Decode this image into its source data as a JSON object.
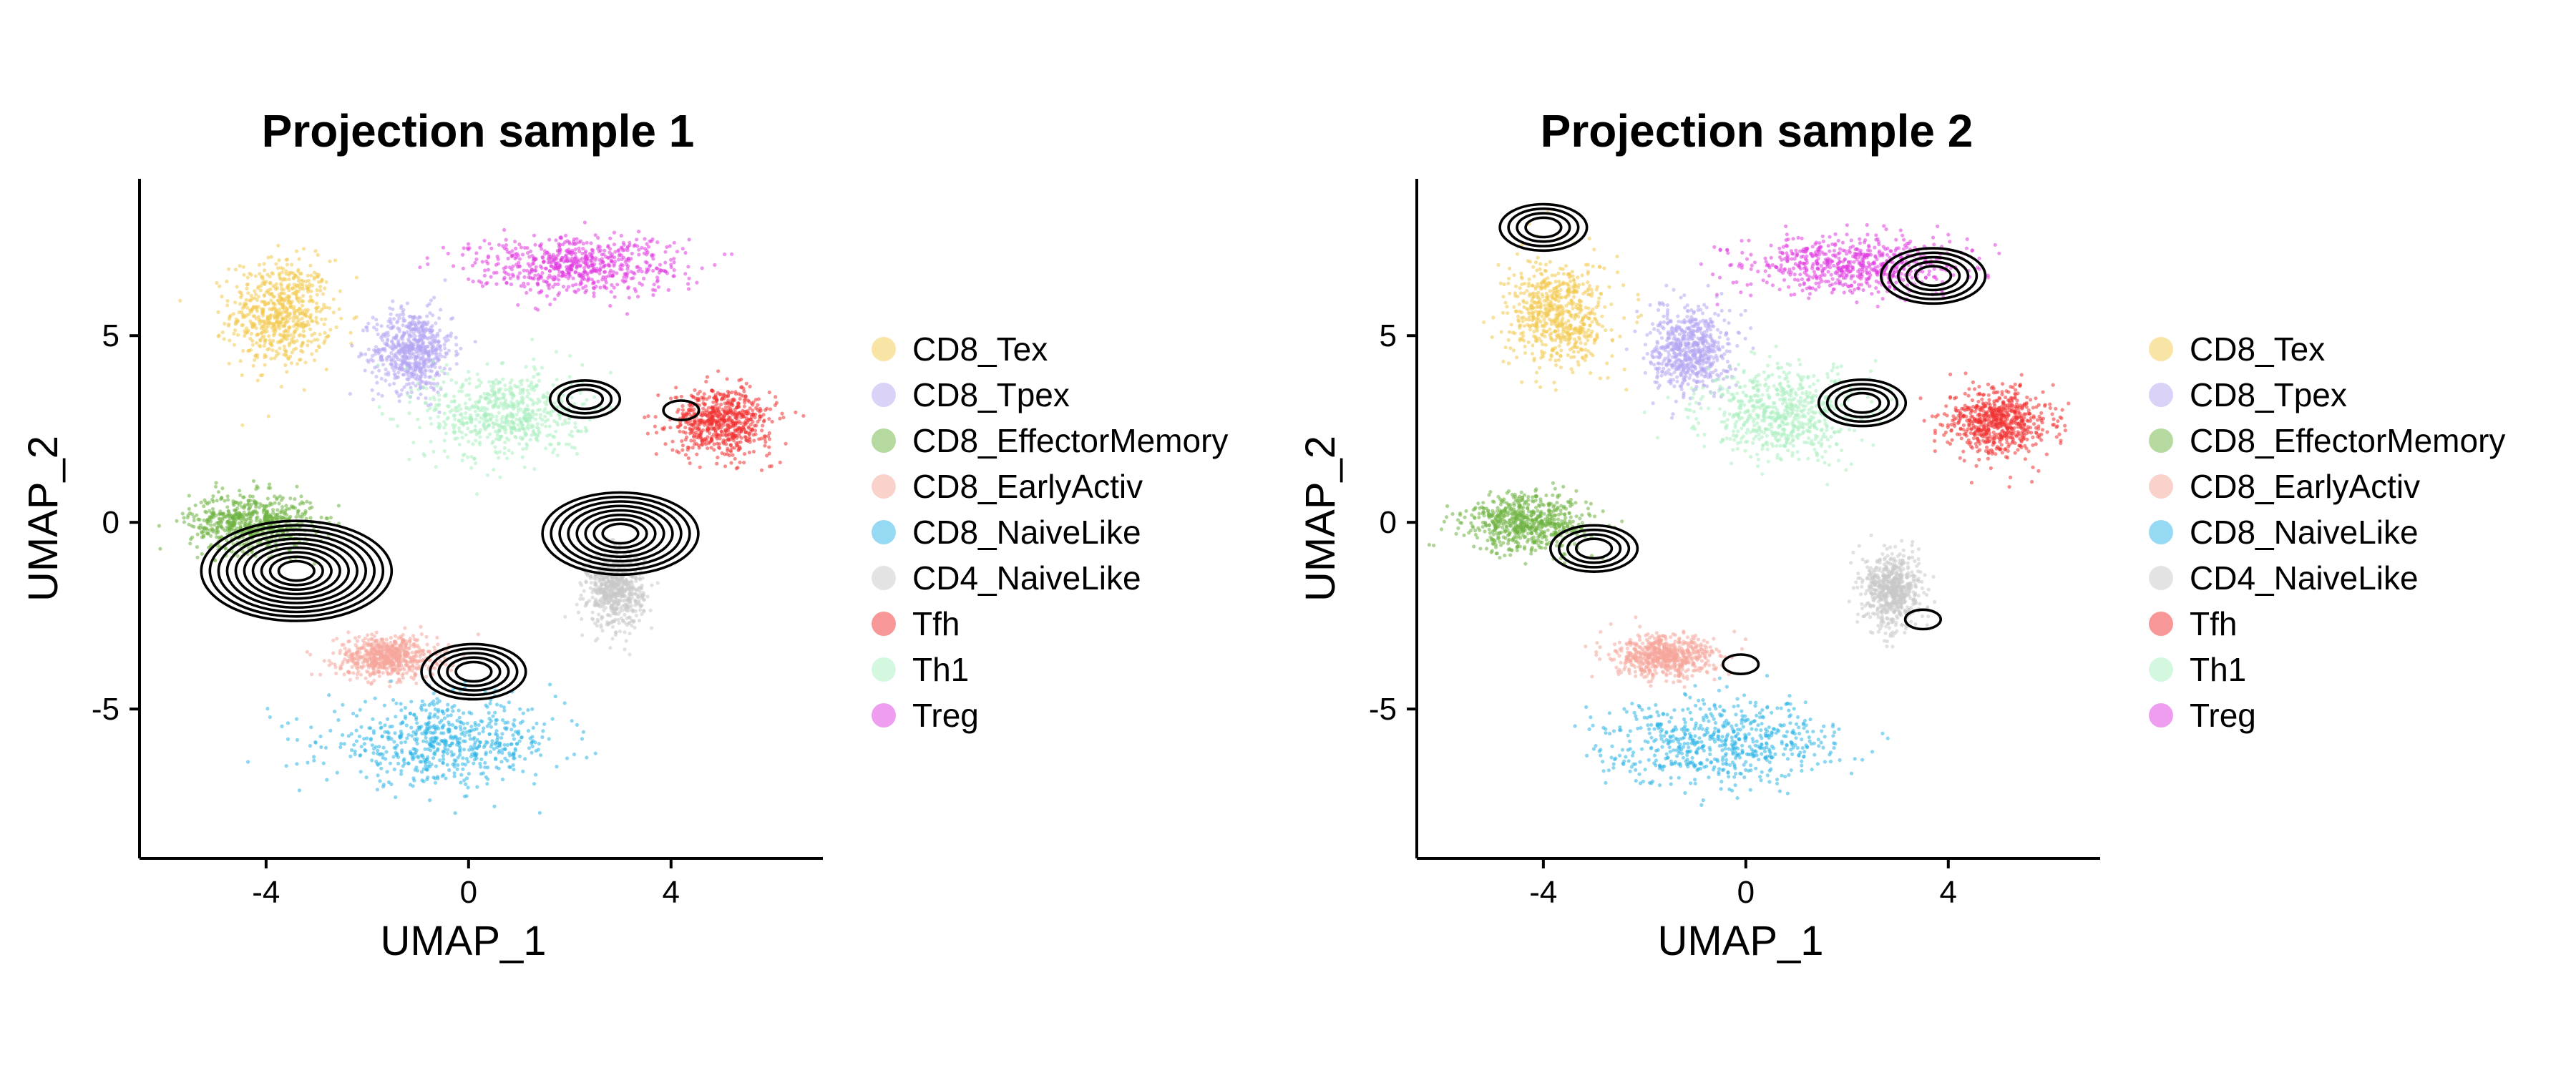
{
  "legend": {
    "entries": [
      {
        "label": "CD8_Tex",
        "color": "#F2C94C"
      },
      {
        "label": "CD8_Tpex",
        "color": "#B7A6F2"
      },
      {
        "label": "CD8_EffectorMemory",
        "color": "#6DB33F"
      },
      {
        "label": "CD8_EarlyActiv",
        "color": "#F6A59A"
      },
      {
        "label": "CD8_NaiveLike",
        "color": "#2BB5E5"
      },
      {
        "label": "CD4_NaiveLike",
        "color": "#C8C8C8"
      },
      {
        "label": "Tfh",
        "color": "#F03030"
      },
      {
        "label": "Th1",
        "color": "#A9EFBF"
      },
      {
        "label": "Treg",
        "color": "#E03BE0"
      }
    ]
  },
  "chart_data": [
    {
      "type": "scatter",
      "title": "Projection sample 1",
      "xlabel": "UMAP_1",
      "ylabel": "UMAP_2",
      "xlim": [
        -6.5,
        7
      ],
      "ylim": [
        -9,
        9.2
      ],
      "xticks": [
        {
          "value": -4,
          "label": "-4"
        },
        {
          "value": 0,
          "label": "0"
        },
        {
          "value": 4,
          "label": "4"
        }
      ],
      "yticks": [
        {
          "value": 5,
          "label": "5"
        },
        {
          "value": 0,
          "label": "0"
        },
        {
          "value": -5,
          "label": "-5"
        }
      ],
      "grid": false,
      "legend_position": "right",
      "clusters": [
        {
          "name": "CD8_Tex",
          "center": [
            -3.7,
            5.6
          ],
          "spread": [
            0.9,
            1.3
          ]
        },
        {
          "name": "CD8_Tpex",
          "center": [
            -1.1,
            4.6
          ],
          "spread": [
            0.7,
            1.0
          ]
        },
        {
          "name": "CD8_EffectorMemory",
          "center": [
            -4.3,
            0.0
          ],
          "spread": [
            1.1,
            0.7
          ]
        },
        {
          "name": "CD8_EarlyActiv",
          "center": [
            -1.6,
            -3.6
          ],
          "spread": [
            0.9,
            0.5
          ]
        },
        {
          "name": "CD8_NaiveLike",
          "center": [
            -0.5,
            -5.9
          ],
          "spread": [
            2.1,
            1.0
          ]
        },
        {
          "name": "CD4_NaiveLike",
          "center": [
            2.9,
            -1.8
          ],
          "spread": [
            0.5,
            0.9
          ]
        },
        {
          "name": "Tfh",
          "center": [
            5.0,
            2.7
          ],
          "spread": [
            0.9,
            0.8
          ]
        },
        {
          "name": "Th1",
          "center": [
            0.7,
            2.9
          ],
          "spread": [
            1.4,
            1.1
          ]
        },
        {
          "name": "Treg",
          "center": [
            2.1,
            6.9
          ],
          "spread": [
            1.9,
            0.7
          ]
        }
      ],
      "density_peaks": [
        {
          "center": [
            -3.4,
            -1.3
          ],
          "levels": 10
        },
        {
          "center": [
            3.0,
            -0.3
          ],
          "levels": 8
        },
        {
          "center": [
            0.1,
            -4.0
          ],
          "levels": 5
        },
        {
          "center": [
            2.3,
            3.3
          ],
          "levels": 3
        },
        {
          "center": [
            4.2,
            3.0
          ],
          "levels": 1
        }
      ]
    },
    {
      "type": "scatter",
      "title": "Projection sample 2",
      "xlabel": "UMAP_1",
      "ylabel": "UMAP_2",
      "xlim": [
        -6.5,
        7
      ],
      "ylim": [
        -9,
        9.2
      ],
      "xticks": [
        {
          "value": -4,
          "label": "-4"
        },
        {
          "value": 0,
          "label": "0"
        },
        {
          "value": 4,
          "label": "4"
        }
      ],
      "yticks": [
        {
          "value": 5,
          "label": "5"
        },
        {
          "value": 0,
          "label": "0"
        },
        {
          "value": -5,
          "label": "-5"
        }
      ],
      "grid": false,
      "legend_position": "right",
      "clusters": [
        {
          "name": "CD8_Tex",
          "center": [
            -3.7,
            5.6
          ],
          "spread": [
            0.9,
            1.3
          ]
        },
        {
          "name": "CD8_Tpex",
          "center": [
            -1.1,
            4.6
          ],
          "spread": [
            0.7,
            1.0
          ]
        },
        {
          "name": "CD8_EffectorMemory",
          "center": [
            -4.3,
            0.0
          ],
          "spread": [
            1.1,
            0.7
          ]
        },
        {
          "name": "CD8_EarlyActiv",
          "center": [
            -1.6,
            -3.6
          ],
          "spread": [
            0.9,
            0.5
          ]
        },
        {
          "name": "CD8_NaiveLike",
          "center": [
            -0.5,
            -5.9
          ],
          "spread": [
            2.1,
            1.0
          ]
        },
        {
          "name": "CD4_NaiveLike",
          "center": [
            2.9,
            -1.8
          ],
          "spread": [
            0.5,
            0.9
          ]
        },
        {
          "name": "Tfh",
          "center": [
            5.0,
            2.7
          ],
          "spread": [
            0.9,
            0.8
          ]
        },
        {
          "name": "Th1",
          "center": [
            0.7,
            2.9
          ],
          "spread": [
            1.4,
            1.1
          ]
        },
        {
          "name": "Treg",
          "center": [
            2.1,
            6.9
          ],
          "spread": [
            1.9,
            0.7
          ]
        }
      ],
      "density_peaks": [
        {
          "center": [
            -3.0,
            -0.7
          ],
          "levels": 4
        },
        {
          "center": [
            3.7,
            6.6
          ],
          "levels": 5
        },
        {
          "center": [
            2.3,
            3.2
          ],
          "levels": 4
        },
        {
          "center": [
            -4.0,
            7.9
          ],
          "levels": 4
        },
        {
          "center": [
            3.5,
            -2.6
          ],
          "levels": 1
        },
        {
          "center": [
            -0.1,
            -3.8
          ],
          "levels": 1
        }
      ]
    }
  ]
}
